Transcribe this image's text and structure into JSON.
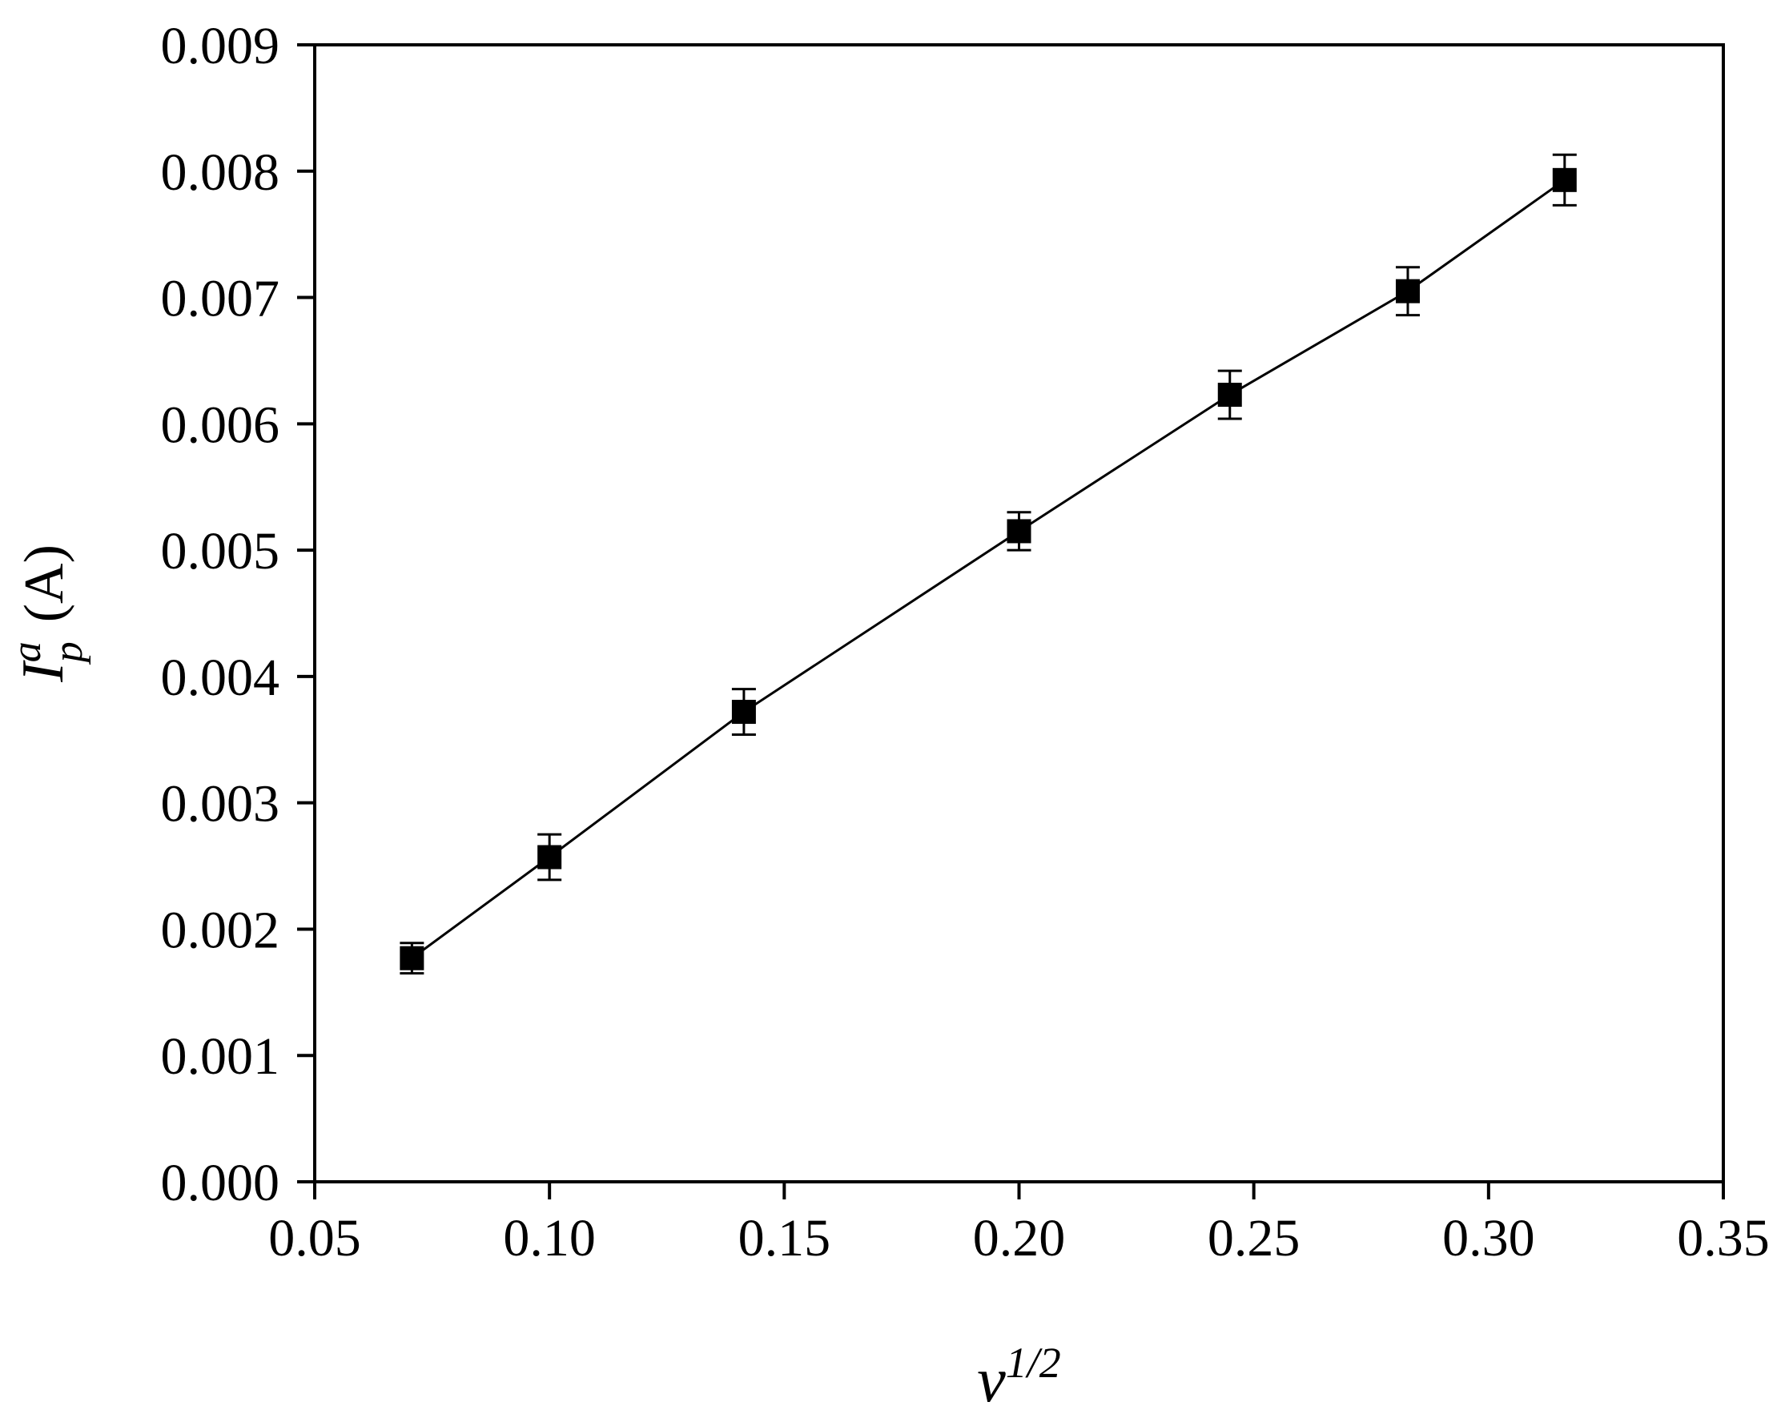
{
  "chart_data": {
    "type": "scatter",
    "title": "",
    "xlabel": {
      "base": "v",
      "sup": "1/2"
    },
    "ylabel": {
      "base": "I",
      "sup": "a",
      "sub": "p",
      "unit": "(A)"
    },
    "xlim": [
      0.05,
      0.35
    ],
    "ylim": [
      0.0,
      0.009
    ],
    "xticks": [
      "0.05",
      "0.10",
      "0.15",
      "0.20",
      "0.25",
      "0.30",
      "0.35"
    ],
    "yticks": [
      "0.000",
      "0.001",
      "0.002",
      "0.003",
      "0.004",
      "0.005",
      "0.006",
      "0.007",
      "0.008",
      "0.009"
    ],
    "grid": false,
    "legend": "none",
    "series": [
      {
        "marker": "square",
        "line": "solid",
        "color": "#000000",
        "x": [
          0.0707,
          0.1,
          0.1414,
          0.2,
          0.2449,
          0.2828,
          0.3162
        ],
        "y": [
          0.00177,
          0.00257,
          0.00372,
          0.00515,
          0.00623,
          0.00705,
          0.00793
        ],
        "error": [
          0.00012,
          0.00018,
          0.00018,
          0.00015,
          0.00019,
          0.00019,
          0.0002
        ]
      }
    ]
  }
}
